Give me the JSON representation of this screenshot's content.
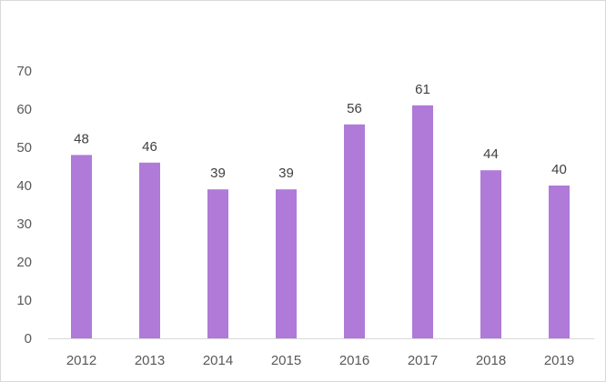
{
  "chart_data": {
    "type": "bar",
    "title": "",
    "xlabel": "",
    "ylabel": "",
    "categories": [
      "2012",
      "2013",
      "2014",
      "2015",
      "2016",
      "2017",
      "2018",
      "2019"
    ],
    "values": [
      48,
      46,
      39,
      39,
      56,
      61,
      44,
      40
    ],
    "data_labels": [
      "48",
      "46",
      "39",
      "39",
      "56",
      "61",
      "44",
      "40"
    ],
    "ylim": [
      0,
      70
    ],
    "yticks": [
      0,
      10,
      20,
      30,
      40,
      50,
      60,
      70
    ],
    "ytick_labels": [
      "0",
      "10",
      "20",
      "30",
      "40",
      "50",
      "60",
      "70"
    ],
    "grid": false,
    "legend": "none",
    "bar_color": "#b07ad8",
    "axis_color": "#d9d9d9"
  }
}
